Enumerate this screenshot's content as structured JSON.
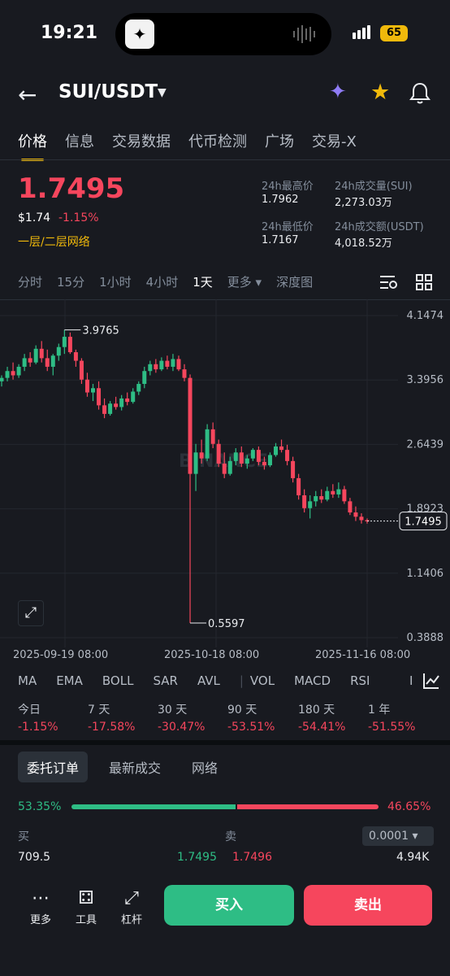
{
  "status_bar": {
    "time": "19:21",
    "battery": "65"
  },
  "header": {
    "pair": "SUI/USDT",
    "icons": [
      "back-icon",
      "ai-sparkle-icon",
      "star-icon",
      "bell-icon"
    ]
  },
  "tabs": [
    {
      "label": "价格",
      "active": true
    },
    {
      "label": "信息"
    },
    {
      "label": "交易数据"
    },
    {
      "label": "代币检测"
    },
    {
      "label": "广场"
    },
    {
      "label": "交易-X"
    }
  ],
  "price": {
    "last": "1.7495",
    "usd": "$1.74",
    "change": "-1.15%",
    "tag": "一层/二层网络"
  },
  "stats": {
    "high_label": "24h最高价",
    "high": "1.7962",
    "vol_label": "24h成交量(SUI)",
    "vol": "2,273.03万",
    "low_label": "24h最低价",
    "low": "1.7167",
    "amount_label": "24h成交额(USDT)",
    "amount": "4,018.52万"
  },
  "intervals": [
    "分时",
    "15分",
    "1小时",
    "4小时",
    "1天",
    "更多",
    "深度图"
  ],
  "chart_data": {
    "type": "candlestick",
    "y_ticks": [
      "4.1474",
      "3.3956",
      "2.6439",
      "1.8923",
      "1.1406",
      "0.3888"
    ],
    "ylim": [
      0.3888,
      4.1474
    ],
    "x_ticks": [
      "2025-09-19 08:00",
      "2025-10-18 08:00",
      "2025-11-16 08:00"
    ],
    "max_label": "3.9765",
    "min_label": "0.5597",
    "last_label": "1.7495",
    "watermark": "BINANCE",
    "candles": [
      [
        3.38,
        3.45,
        3.32,
        3.42
      ],
      [
        3.42,
        3.55,
        3.38,
        3.5
      ],
      [
        3.5,
        3.6,
        3.4,
        3.45
      ],
      [
        3.45,
        3.58,
        3.42,
        3.55
      ],
      [
        3.55,
        3.7,
        3.5,
        3.65
      ],
      [
        3.65,
        3.72,
        3.55,
        3.6
      ],
      [
        3.6,
        3.8,
        3.58,
        3.76
      ],
      [
        3.76,
        3.85,
        3.6,
        3.65
      ],
      [
        3.65,
        3.75,
        3.5,
        3.55
      ],
      [
        3.55,
        3.7,
        3.45,
        3.68
      ],
      [
        3.68,
        3.82,
        3.62,
        3.78
      ],
      [
        3.78,
        3.98,
        3.7,
        3.9
      ],
      [
        3.9,
        3.95,
        3.7,
        3.72
      ],
      [
        3.72,
        3.75,
        3.55,
        3.62
      ],
      [
        3.62,
        3.65,
        3.35,
        3.4
      ],
      [
        3.4,
        3.48,
        3.2,
        3.25
      ],
      [
        3.25,
        3.35,
        3.15,
        3.3
      ],
      [
        3.3,
        3.38,
        3.05,
        3.1
      ],
      [
        3.1,
        3.18,
        2.95,
        3.0
      ],
      [
        3.0,
        3.15,
        2.98,
        3.12
      ],
      [
        3.12,
        3.2,
        3.05,
        3.08
      ],
      [
        3.08,
        3.22,
        3.04,
        3.18
      ],
      [
        3.18,
        3.25,
        3.1,
        3.14
      ],
      [
        3.14,
        3.3,
        3.12,
        3.26
      ],
      [
        3.26,
        3.38,
        3.22,
        3.35
      ],
      [
        3.35,
        3.55,
        3.3,
        3.5
      ],
      [
        3.5,
        3.62,
        3.45,
        3.58
      ],
      [
        3.58,
        3.64,
        3.48,
        3.52
      ],
      [
        3.52,
        3.66,
        3.5,
        3.62
      ],
      [
        3.62,
        3.68,
        3.52,
        3.55
      ],
      [
        3.55,
        3.7,
        3.5,
        3.64
      ],
      [
        3.64,
        3.68,
        3.5,
        3.52
      ],
      [
        3.52,
        3.58,
        3.38,
        3.42
      ],
      [
        3.42,
        3.46,
        0.56,
        2.3
      ],
      [
        2.3,
        2.65,
        2.1,
        2.55
      ],
      [
        2.55,
        2.7,
        2.42,
        2.48
      ],
      [
        2.48,
        2.88,
        2.45,
        2.82
      ],
      [
        2.82,
        2.9,
        2.6,
        2.65
      ],
      [
        2.65,
        2.7,
        2.38,
        2.42
      ],
      [
        2.42,
        2.55,
        2.25,
        2.3
      ],
      [
        2.3,
        2.5,
        2.28,
        2.45
      ],
      [
        2.45,
        2.6,
        2.4,
        2.55
      ],
      [
        2.55,
        2.62,
        2.38,
        2.42
      ],
      [
        2.42,
        2.52,
        2.36,
        2.48
      ],
      [
        2.48,
        2.6,
        2.45,
        2.58
      ],
      [
        2.58,
        2.62,
        2.4,
        2.44
      ],
      [
        2.44,
        2.5,
        2.35,
        2.4
      ],
      [
        2.4,
        2.55,
        2.38,
        2.52
      ],
      [
        2.52,
        2.66,
        2.5,
        2.62
      ],
      [
        2.62,
        2.7,
        2.55,
        2.58
      ],
      [
        2.58,
        2.64,
        2.4,
        2.45
      ],
      [
        2.45,
        2.5,
        2.2,
        2.25
      ],
      [
        2.25,
        2.3,
        2.0,
        2.05
      ],
      [
        2.05,
        2.12,
        1.85,
        1.9
      ],
      [
        1.9,
        2.05,
        1.78,
        1.98
      ],
      [
        1.98,
        2.1,
        1.92,
        2.04
      ],
      [
        2.04,
        2.12,
        1.96,
        2.0
      ],
      [
        2.0,
        2.15,
        1.98,
        2.1
      ],
      [
        2.1,
        2.18,
        2.02,
        2.06
      ],
      [
        2.06,
        2.2,
        2.02,
        2.12
      ],
      [
        2.12,
        2.16,
        1.95,
        1.98
      ],
      [
        1.98,
        2.02,
        1.82,
        1.85
      ],
      [
        1.85,
        1.92,
        1.75,
        1.8
      ],
      [
        1.8,
        1.84,
        1.72,
        1.76
      ],
      [
        1.76,
        1.78,
        1.72,
        1.75
      ]
    ]
  },
  "indicators": [
    "MA",
    "EMA",
    "BOLL",
    "SAR",
    "AVL",
    "VOL",
    "MACD",
    "RSI",
    "I"
  ],
  "performance": [
    {
      "label": "今日",
      "value": "-1.15%"
    },
    {
      "label": "7 天",
      "value": "-17.58%"
    },
    {
      "label": "30 天",
      "value": "-30.47%"
    },
    {
      "label": "90 天",
      "value": "-53.51%"
    },
    {
      "label": "180 天",
      "value": "-54.41%"
    },
    {
      "label": "1 年",
      "value": "-51.55%"
    }
  ],
  "order_tabs": [
    "委托订单",
    "最新成交",
    "网络"
  ],
  "order_book": {
    "buy_pct": "53.35%",
    "sell_pct": "46.65%",
    "buy_ratio": 0.5335,
    "buy_label": "买",
    "sell_label": "卖",
    "precision": "0.0001",
    "buy_qty": "709.5",
    "buy_price": "1.7495",
    "sell_price": "1.7496",
    "sell_qty": "4.94K"
  },
  "bottom_nav": [
    {
      "label": "更多",
      "icon": "more-icon"
    },
    {
      "label": "工具",
      "icon": "tools-icon"
    },
    {
      "label": "杠杆",
      "icon": "leverage-icon"
    }
  ],
  "actions": {
    "buy": "买入",
    "sell": "卖出"
  },
  "colors": {
    "up": "#2ebd85",
    "down": "#f6465d",
    "accent": "#f0b90b",
    "bg": "#181a20"
  }
}
